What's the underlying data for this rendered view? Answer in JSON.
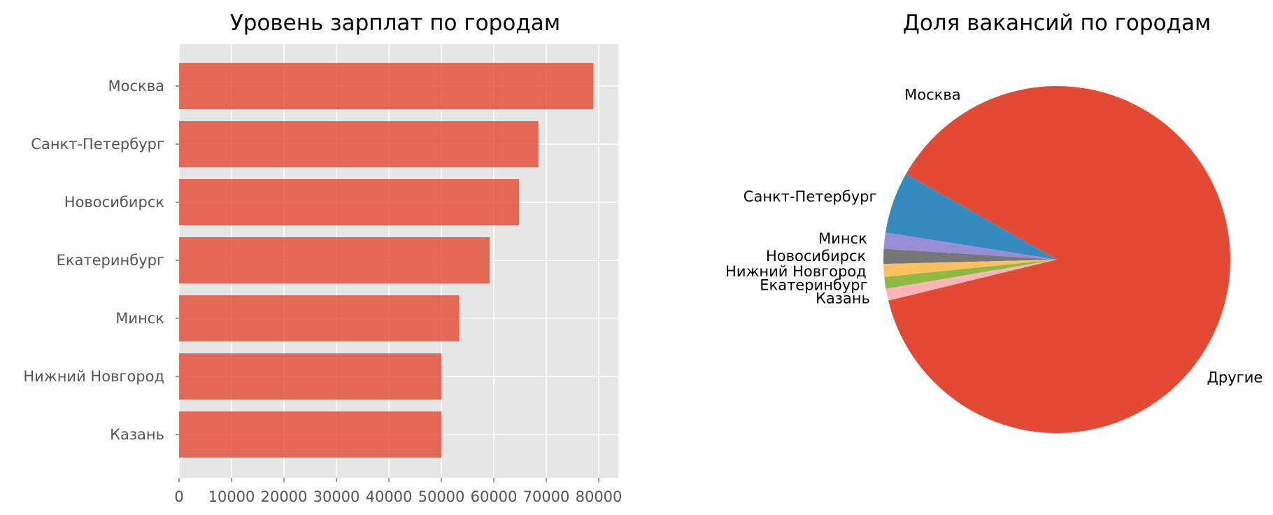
{
  "chart_data": [
    {
      "type": "bar",
      "orientation": "horizontal",
      "title": "Уровень зарплат по городам",
      "xlabel": "",
      "ylabel": "",
      "categories": [
        "Москва",
        "Санкт-Петербург",
        "Новосибирск",
        "Екатеринбург",
        "Минск",
        "Нижний Новгород",
        "Казань"
      ],
      "values": [
        79000,
        68500,
        64800,
        59200,
        53400,
        50000,
        50000
      ],
      "xlim": [
        0,
        83000
      ],
      "xticks": [
        0,
        10000,
        20000,
        30000,
        40000,
        50000,
        60000,
        70000,
        80000
      ],
      "xtick_labels": [
        "0",
        "10000",
        "20000",
        "30000",
        "40000",
        "50000",
        "60000",
        "70000",
        "80000"
      ],
      "grid": true,
      "bar_color": "#e24a33"
    },
    {
      "type": "pie",
      "title": "Доля вакансий по городам",
      "start_angle": 90,
      "direction": "counterclockwise",
      "slices": [
        {
          "label": "Москва",
          "value": 16.8,
          "color": "#e24a33"
        },
        {
          "label": "Санкт-Петербург",
          "value": 5.7,
          "color": "#348abd"
        },
        {
          "label": "Минск",
          "value": 1.5,
          "color": "#988ed5"
        },
        {
          "label": "Новосибирск",
          "value": 1.4,
          "color": "#777777"
        },
        {
          "label": "Нижний Новгород",
          "value": 1.2,
          "color": "#fbc15e"
        },
        {
          "label": "Екатеринбург",
          "value": 1.1,
          "color": "#8eba42"
        },
        {
          "label": "Казань",
          "value": 1.1,
          "color": "#ffb5b8"
        },
        {
          "label": "Другие",
          "value": 71.2,
          "color": "#e24a33"
        }
      ]
    }
  ]
}
